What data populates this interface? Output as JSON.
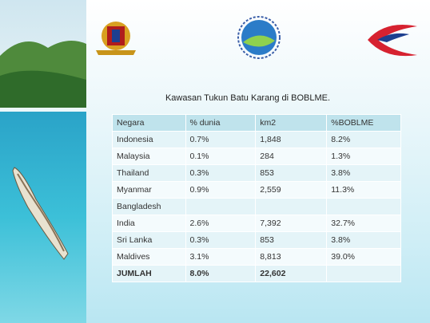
{
  "title": "Kawasan Tukun Batu Karang di BOBLME.",
  "table": {
    "header": [
      "Negara",
      "% dunia",
      "km2",
      "%BOBLME"
    ],
    "rows": [
      [
        "Indonesia",
        "0.7%",
        "1,848",
        "8.2%"
      ],
      [
        "Malaysia",
        "0.1%",
        "284",
        "1.3%"
      ],
      [
        "Thailand",
        "0.3%",
        "853",
        "3.8%"
      ],
      [
        "Myanmar",
        "0.9%",
        "2,559",
        "11.3%"
      ],
      [
        "Bangladesh"
      ],
      [
        "India",
        "2.6%",
        "7,392",
        "32.7%"
      ],
      [
        "Sri Lanka",
        "0.3%",
        "853",
        "3.8%"
      ],
      [
        "Maldives",
        "3.1%",
        "8,813",
        "39.0%"
      ],
      [
        "JUMLAH",
        "8.0%",
        "22,602"
      ]
    ]
  }
}
